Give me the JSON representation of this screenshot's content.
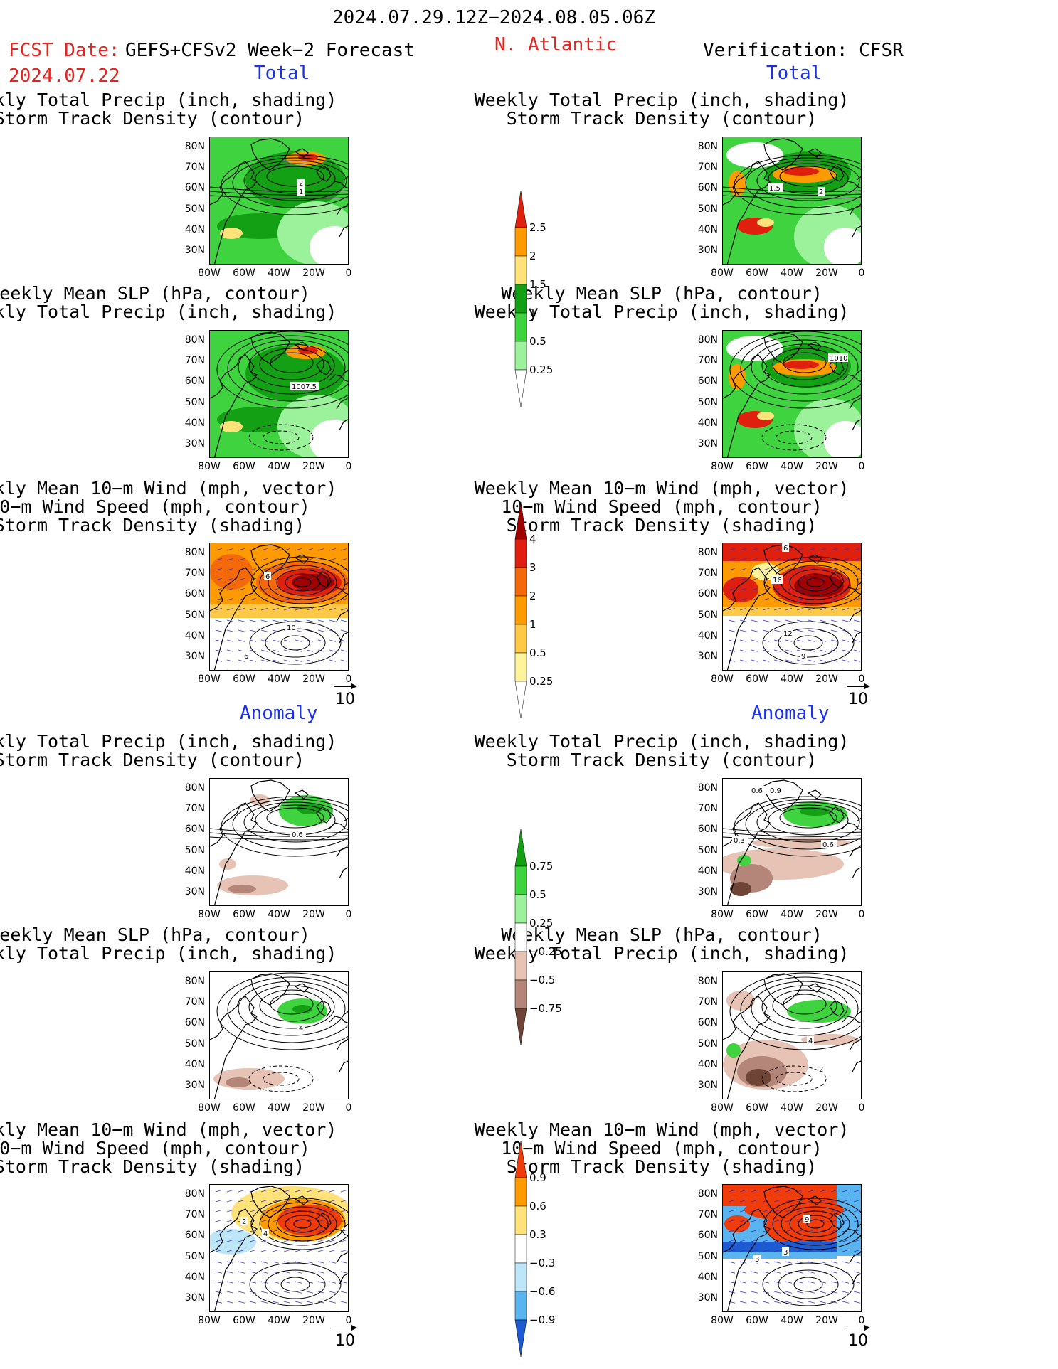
{
  "header": {
    "date_range": "2024.07.29.12Z−2024.08.05.06Z",
    "fcst_date_label": "FCST Date:",
    "fcst_date": "2024.07.22",
    "model": "GEFS+CFSv2 Week−2 Forecast",
    "region": "N. Atlantic",
    "verification": "Verification: CFSR"
  },
  "sections": {
    "total": "Total",
    "anomaly": "Anomaly"
  },
  "panel_titles": {
    "precip_track": [
      "Weekly Total Precip (inch, shading)",
      "Storm Track Density (contour)"
    ],
    "slp_precip": [
      "Weekly Mean SLP (hPa, contour)",
      "Weekly Total Precip (inch, shading)"
    ],
    "wind_track": [
      "Weekly Mean 10−m Wind (mph, vector)",
      "10−m Wind Speed (mph, contour)",
      "Storm Track Density (shading)"
    ]
  },
  "axes": {
    "lat_labels": [
      "80N",
      "70N",
      "60N",
      "50N",
      "40N",
      "30N"
    ],
    "lon_labels": [
      "80W",
      "60W",
      "40W",
      "20W",
      "0"
    ]
  },
  "vector_ref": "10",
  "contour_labels": {
    "l1": [
      "2",
      "1"
    ],
    "r1": [
      "1.5",
      "2"
    ],
    "l2": [
      "1007.5"
    ],
    "r2": [
      "1010"
    ],
    "l3": [
      "6",
      "10",
      "6"
    ],
    "r3": [
      "6",
      "16",
      "12",
      "9"
    ],
    "l4": [
      "0.6"
    ],
    "r4": [
      "0.6",
      "0.9",
      "0.3",
      "0.6"
    ],
    "l5": [
      "4"
    ],
    "r5": [
      "4",
      "2"
    ],
    "l6": [
      "2",
      "4"
    ],
    "r6": [
      "9",
      "3",
      "3"
    ]
  },
  "colorbars": {
    "precip_total": {
      "labels": [
        "2.5",
        "2",
        "1.5",
        "1",
        "0.5",
        "0.25"
      ],
      "colors": [
        "#e0200f",
        "#ff9b00",
        "#ffe27a",
        "#14a014",
        "#3fd43f",
        "#9bf29b",
        "#ffffff"
      ]
    },
    "track_total": {
      "labels": [
        "4",
        "3",
        "2",
        "1",
        "0.5",
        "0.25"
      ],
      "colors": [
        "#a00000",
        "#e0200f",
        "#f46a0a",
        "#ff9b00",
        "#ffc846",
        "#fff49b",
        "#ffffff"
      ]
    },
    "precip_anom": {
      "labels": [
        "0.75",
        "0.5",
        "0.25",
        "−0.25",
        "−0.5",
        "−0.75"
      ],
      "colors": [
        "#14a014",
        "#3fd43f",
        "#9bf29b",
        "#ffffff",
        "#e6c3b4",
        "#b4867a",
        "#6e4437"
      ]
    },
    "track_anom": {
      "labels": [
        "0.9",
        "0.6",
        "0.3",
        "−0.3",
        "−0.6",
        "−0.9"
      ],
      "colors": [
        "#f03c0a",
        "#ff9b00",
        "#ffe27a",
        "#ffffff",
        "#bde6f8",
        "#5ab4f0",
        "#1e5ad2"
      ]
    }
  }
}
